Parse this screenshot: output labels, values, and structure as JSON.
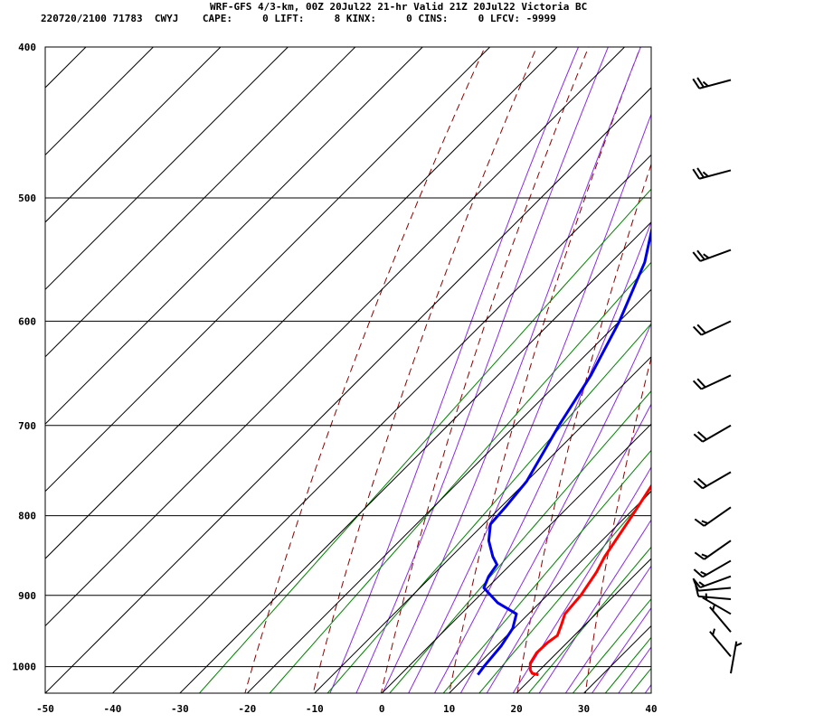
{
  "header": {
    "line1": "WRF-GFS 4/3-km, 00Z 20Jul22 21-hr Valid 21Z 20Jul22 Victoria BC",
    "station": "220720/2100 71783  CWYJ",
    "indices": [
      {
        "label": "CAPE:",
        "value": "0"
      },
      {
        "label": "LIFT:",
        "value": "8"
      },
      {
        "label": "KINX:",
        "value": "0"
      },
      {
        "label": "CINS:",
        "value": "0"
      },
      {
        "label": "LFCV:",
        "value": "-9999"
      }
    ]
  },
  "colors": {
    "temperature": "#ff0000",
    "dewpoint": "#0000e6",
    "isotherm": "#000000",
    "isobar": "#000000",
    "dry_adiabat": "#8b0000",
    "moist_adiabat": "#8a2be2",
    "mixing_ratio": "#008000",
    "wind_barb": "#000000"
  },
  "chart_data": {
    "type": "skew-t",
    "x_axis": {
      "label": "",
      "ticks": [
        -50,
        -40,
        -30,
        -20,
        -10,
        0,
        10,
        20,
        30,
        40
      ],
      "range": [
        -50,
        40
      ],
      "unit": "degC"
    },
    "y_axis": {
      "label": "",
      "ticks": [
        400,
        500,
        600,
        700,
        800,
        900,
        1000
      ],
      "range": [
        400,
        1040
      ],
      "scale": "log-pressure",
      "unit": "hPa"
    },
    "grid": true,
    "series": [
      {
        "key": "temperature",
        "points": [
          [
            1012,
            20.5
          ],
          [
            1010,
            19.4
          ],
          [
            1005,
            18.6
          ],
          [
            995,
            17.6
          ],
          [
            980,
            17.0
          ],
          [
            965,
            17.1
          ],
          [
            955,
            17.5
          ],
          [
            940,
            16.5
          ],
          [
            925,
            15.4
          ],
          [
            900,
            15.0
          ],
          [
            870,
            13.9
          ],
          [
            850,
            12.8
          ],
          [
            800,
            10.8
          ],
          [
            750,
            8.5
          ],
          [
            700,
            6.0
          ],
          [
            650,
            2.0
          ],
          [
            600,
            -1.5
          ],
          [
            550,
            -6.5
          ],
          [
            500,
            -11.5
          ],
          [
            450,
            -15.5
          ],
          [
            420,
            -18.5
          ]
        ]
      },
      {
        "key": "dewpoint",
        "points": [
          [
            1012,
            11.5
          ],
          [
            1000,
            11.2
          ],
          [
            970,
            10.7
          ],
          [
            945,
            9.8
          ],
          [
            925,
            8.2
          ],
          [
            910,
            3.8
          ],
          [
            890,
            -0.5
          ],
          [
            875,
            -1.5
          ],
          [
            860,
            -2.0
          ],
          [
            850,
            -3.8
          ],
          [
            830,
            -6.8
          ],
          [
            810,
            -9.0
          ],
          [
            790,
            -9.3
          ],
          [
            760,
            -10.0
          ],
          [
            700,
            -13.5
          ],
          [
            650,
            -16.2
          ],
          [
            600,
            -20.0
          ],
          [
            550,
            -25.0
          ],
          [
            500,
            -32.5
          ],
          [
            480,
            -36.5
          ],
          [
            420,
            -41.5
          ]
        ]
      }
    ],
    "wind_barbs": [
      {
        "p": 420,
        "dir": 255,
        "speed_kt": 25
      },
      {
        "p": 480,
        "dir": 255,
        "speed_kt": 25
      },
      {
        "p": 540,
        "dir": 250,
        "speed_kt": 25
      },
      {
        "p": 600,
        "dir": 245,
        "speed_kt": 20
      },
      {
        "p": 650,
        "dir": 245,
        "speed_kt": 20
      },
      {
        "p": 700,
        "dir": 240,
        "speed_kt": 20
      },
      {
        "p": 750,
        "dir": 240,
        "speed_kt": 20
      },
      {
        "p": 790,
        "dir": 235,
        "speed_kt": 15
      },
      {
        "p": 830,
        "dir": 235,
        "speed_kt": 15
      },
      {
        "p": 855,
        "dir": 240,
        "speed_kt": 15
      },
      {
        "p": 875,
        "dir": 250,
        "speed_kt": 15
      },
      {
        "p": 890,
        "dir": 265,
        "speed_kt": 10
      },
      {
        "p": 905,
        "dir": 275,
        "speed_kt": 10
      },
      {
        "p": 925,
        "dir": 300,
        "speed_kt": 5
      },
      {
        "p": 950,
        "dir": 320,
        "speed_kt": 5
      },
      {
        "p": 985,
        "dir": 320,
        "speed_kt": 5
      },
      {
        "p": 1010,
        "dir": 10,
        "speed_kt": 5
      }
    ]
  }
}
